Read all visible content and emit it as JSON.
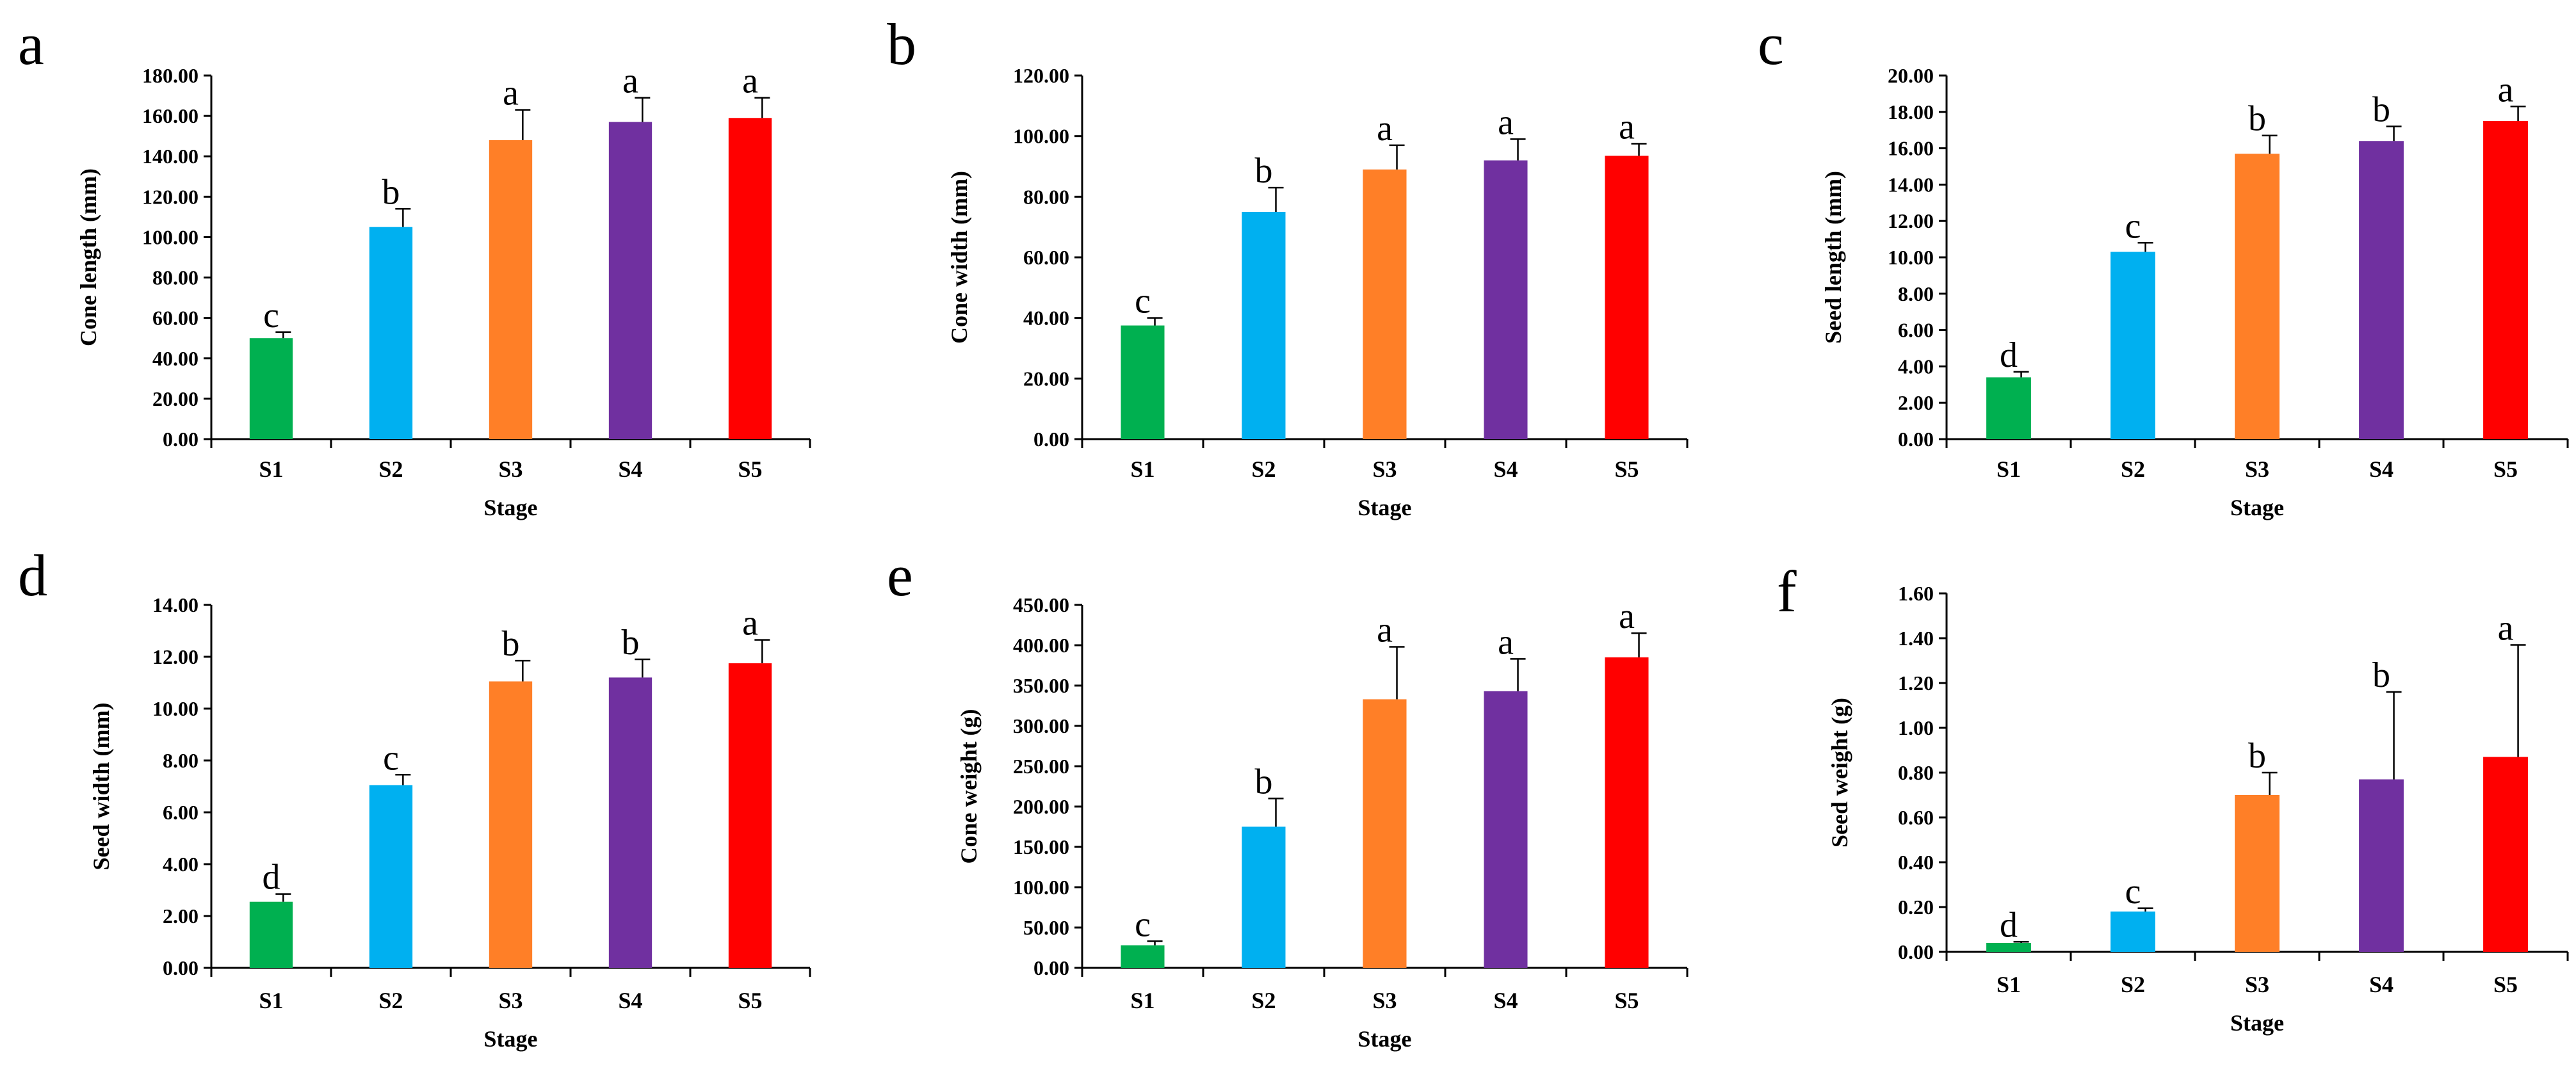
{
  "chart_data": [
    {
      "panel": "a",
      "type": "bar",
      "categories": [
        "S1",
        "S2",
        "S3",
        "S4",
        "S5"
      ],
      "values": [
        50,
        105,
        148,
        157,
        159
      ],
      "errors": [
        3,
        9,
        15,
        12,
        10
      ],
      "significance": [
        "c",
        "b",
        "a",
        "a",
        "a"
      ],
      "colors": [
        "#00b050",
        "#00b0f0",
        "#ff7f27",
        "#7030a0",
        "#ff0000"
      ],
      "xlabel": "Stage",
      "ylabel": "Cone length (mm)",
      "ylim": [
        0,
        180
      ],
      "yticks": [
        "0.00",
        "20.00",
        "40.00",
        "60.00",
        "80.00",
        "100.00",
        "120.00",
        "140.00",
        "160.00",
        "180.00"
      ]
    },
    {
      "panel": "b",
      "type": "bar",
      "categories": [
        "S1",
        "S2",
        "S3",
        "S4",
        "S5"
      ],
      "values": [
        37.5,
        75,
        89,
        92,
        93.5
      ],
      "errors": [
        2.5,
        8,
        8,
        7,
        4
      ],
      "significance": [
        "c",
        "b",
        "a",
        "a",
        "a"
      ],
      "colors": [
        "#00b050",
        "#00b0f0",
        "#ff7f27",
        "#7030a0",
        "#ff0000"
      ],
      "xlabel": "Stage",
      "ylabel": "Cone width (mm)",
      "ylim": [
        0,
        120
      ],
      "yticks": [
        "0.00",
        "20.00",
        "40.00",
        "60.00",
        "80.00",
        "100.00",
        "120.00"
      ]
    },
    {
      "panel": "c",
      "type": "bar",
      "categories": [
        "S1",
        "S2",
        "S3",
        "S4",
        "S5"
      ],
      "values": [
        3.4,
        10.3,
        15.7,
        16.4,
        17.5
      ],
      "errors": [
        0.3,
        0.5,
        1.0,
        0.8,
        0.8
      ],
      "significance": [
        "d",
        "c",
        "b",
        "b",
        "a"
      ],
      "colors": [
        "#00b050",
        "#00b0f0",
        "#ff7f27",
        "#7030a0",
        "#ff0000"
      ],
      "xlabel": "Stage",
      "ylabel": "Seed length (mm)",
      "ylim": [
        0,
        20
      ],
      "yticks": [
        "0.00",
        "2.00",
        "4.00",
        "6.00",
        "8.00",
        "10.00",
        "12.00",
        "14.00",
        "16.00",
        "18.00",
        "20.00"
      ]
    },
    {
      "panel": "d",
      "type": "bar",
      "categories": [
        "S1",
        "S2",
        "S3",
        "S4",
        "S5"
      ],
      "values": [
        2.55,
        7.05,
        11.05,
        11.2,
        11.75
      ],
      "errors": [
        0.3,
        0.4,
        0.8,
        0.7,
        0.9
      ],
      "significance": [
        "d",
        "c",
        "b",
        "b",
        "a"
      ],
      "colors": [
        "#00b050",
        "#00b0f0",
        "#ff7f27",
        "#7030a0",
        "#ff0000"
      ],
      "xlabel": "Stage",
      "ylabel": "Seed width (mm)",
      "ylim": [
        0,
        14
      ],
      "yticks": [
        "0.00",
        "2.00",
        "4.00",
        "6.00",
        "8.00",
        "10.00",
        "12.00",
        "14.00"
      ]
    },
    {
      "panel": "e",
      "type": "bar",
      "categories": [
        "S1",
        "S2",
        "S3",
        "S4",
        "S5"
      ],
      "values": [
        28,
        175,
        333,
        343,
        385
      ],
      "errors": [
        5,
        35,
        65,
        40,
        30
      ],
      "significance": [
        "c",
        "b",
        "a",
        "a",
        "a"
      ],
      "colors": [
        "#00b050",
        "#00b0f0",
        "#ff7f27",
        "#7030a0",
        "#ff0000"
      ],
      "xlabel": "Stage",
      "ylabel": "Cone weight (g)",
      "ylim": [
        0,
        450
      ],
      "yticks": [
        "0.00",
        "50.00",
        "100.00",
        "150.00",
        "200.00",
        "250.00",
        "300.00",
        "350.00",
        "400.00",
        "450.00"
      ]
    },
    {
      "panel": "f",
      "type": "bar",
      "categories": [
        "S1",
        "S2",
        "S3",
        "S4",
        "S5"
      ],
      "values": [
        0.04,
        0.18,
        0.7,
        0.77,
        0.87
      ],
      "errors": [
        0.005,
        0.015,
        0.1,
        0.39,
        0.5
      ],
      "significance": [
        "d",
        "c",
        "b",
        "b",
        "a"
      ],
      "colors": [
        "#00b050",
        "#00b0f0",
        "#ff7f27",
        "#7030a0",
        "#ff0000"
      ],
      "xlabel": "Stage",
      "ylabel": "Seed weight (g)",
      "ylim": [
        0,
        1.6
      ],
      "yticks": [
        "0.00",
        "0.20",
        "0.40",
        "0.60",
        "0.80",
        "1.00",
        "1.20",
        "1.40",
        "1.60"
      ]
    }
  ]
}
